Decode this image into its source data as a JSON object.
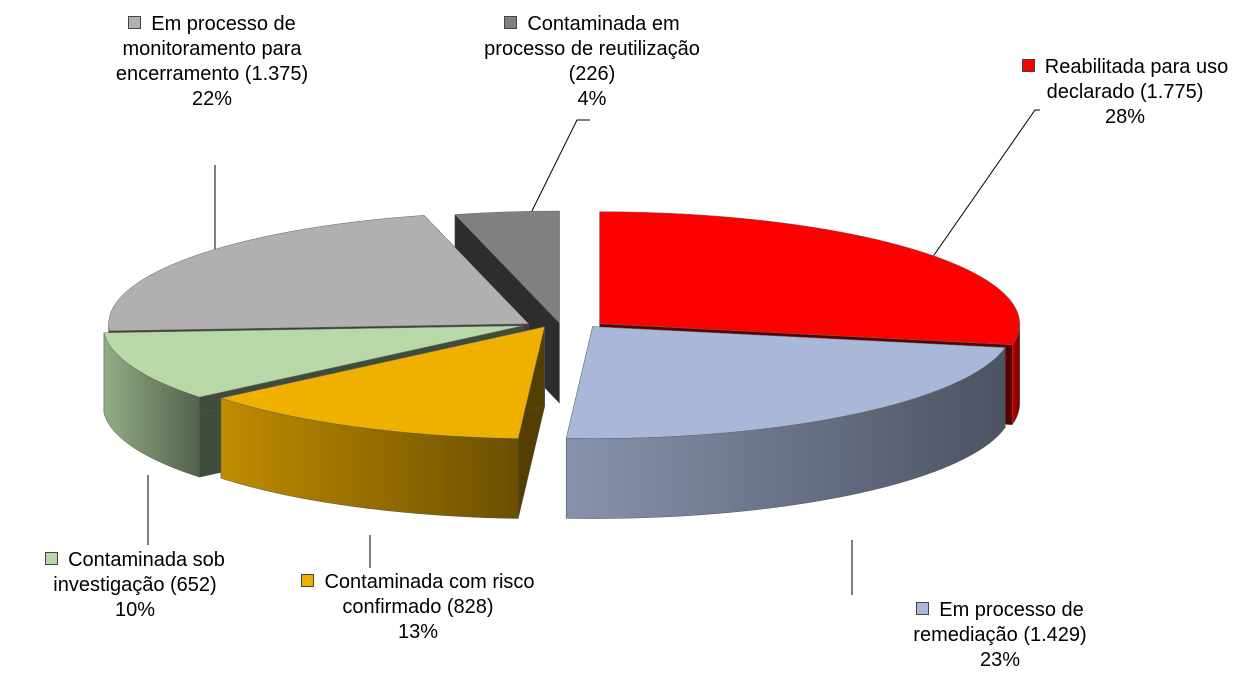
{
  "chart_data": {
    "type": "pie",
    "categories": [
      "Reabilitada para uso declarado (1.775)",
      "Em processo de remediação (1.429)",
      "Contaminada com risco confirmado (828)",
      "Contaminada sob investigação (652)",
      "Em processo de monitoramento para encerramento (1.375)",
      "Contaminada em processo de reutilização (226)"
    ],
    "values": [
      28,
      23,
      13,
      10,
      22,
      4
    ],
    "value_labels": [
      "28%",
      "23%",
      "13%",
      "10%",
      "22%",
      "4%"
    ],
    "colors": [
      "#ff0000",
      "#a9b8d8",
      "#f0b000",
      "#b8d8a8",
      "#b0b0b0",
      "#808080"
    ]
  }
}
